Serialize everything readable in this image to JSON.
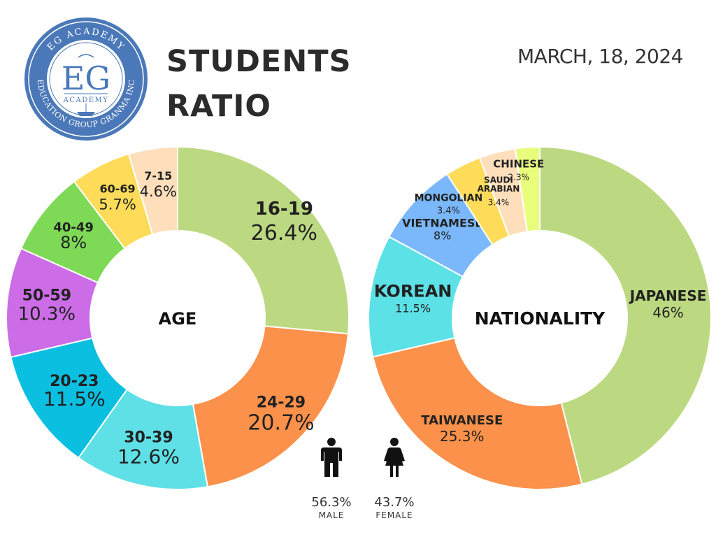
{
  "logo": {
    "arc_top": "EG ACADEMY",
    "monogram": "EG",
    "sub": "ACADEMY",
    "arc_bottom": "EDUCATION GROUP GRANMA INC"
  },
  "header": {
    "title_line1": "STUDENTS",
    "title_line2": "RATIO",
    "date": "MARCH, 18, 2024"
  },
  "chart_data": [
    {
      "type": "pie",
      "title": "",
      "center_label": "AGE",
      "slices": [
        {
          "label": "16-19",
          "value": 26.4,
          "display": "26.4%",
          "color": "#bcd982"
        },
        {
          "label": "24-29",
          "value": 20.7,
          "display": "20.7%",
          "color": "#fb914a"
        },
        {
          "label": "30-39",
          "value": 12.6,
          "display": "12.6%",
          "color": "#5fe0e7"
        },
        {
          "label": "20-23",
          "value": 11.5,
          "display": "11.5%",
          "color": "#0bbfe0"
        },
        {
          "label": "50-59",
          "value": 10.3,
          "display": "10.3%",
          "color": "#cc6ce7"
        },
        {
          "label": "40-49",
          "value": 8,
          "display": "8%",
          "color": "#7ed957"
        },
        {
          "label": "60-69",
          "value": 5.7,
          "display": "5.7%",
          "color": "#fedc5a"
        },
        {
          "label": "7-15",
          "value": 4.6,
          "display": "4.6%",
          "color": "#ffdfbb"
        }
      ]
    },
    {
      "type": "pie",
      "title": "",
      "center_label": "NATIONALITY",
      "slices": [
        {
          "label": "JAPANESE",
          "value": 46,
          "display": "46%",
          "color": "#bcd982"
        },
        {
          "label": "TAIWANESE",
          "value": 25.3,
          "display": "25.3%",
          "color": "#fb914a"
        },
        {
          "label": "KOREAN",
          "value": 11.5,
          "display": "11.5%",
          "color": "#5ce1e6"
        },
        {
          "label": "VIETNAMESE",
          "value": 8,
          "display": "8%",
          "color": "#7ab8fb"
        },
        {
          "label": "MONGOLIAN",
          "value": 3.4,
          "display": "3.4%",
          "color": "#fedc5a"
        },
        {
          "label": "SAUDI ARABIAN",
          "value": 3.4,
          "display": "3.4%",
          "color": "#ffdfbb"
        },
        {
          "label": "CHINESE",
          "value": 2.3,
          "display": "2.3%",
          "color": "#e9fd7d"
        }
      ]
    }
  ],
  "gender": {
    "male": {
      "value": "56.3%",
      "label": "MALE",
      "icon": "male-person-icon"
    },
    "female": {
      "value": "43.7%",
      "label": "FEMALE",
      "icon": "female-person-icon"
    }
  }
}
